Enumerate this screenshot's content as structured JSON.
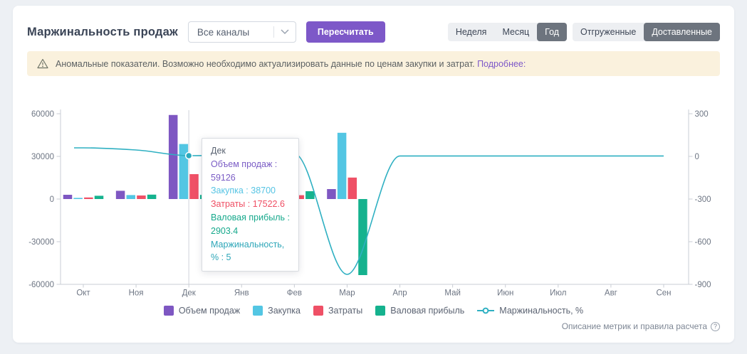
{
  "header": {
    "title": "Маржинальность продаж",
    "channel_select": {
      "value": "Все каналы"
    },
    "recalc_button": "Пересчитать",
    "period_toggle": {
      "options": [
        "Неделя",
        "Месяц",
        "Год"
      ],
      "selected": "Год"
    },
    "shipment_toggle": {
      "options": [
        "Отгруженные",
        "Доставленные"
      ],
      "selected": "Доставленные"
    }
  },
  "banner": {
    "text": "Аномальные показатели. Возможно необходимо актуализировать данные по ценам закупки и затрат.",
    "link": "Подробнее:"
  },
  "tooltip": {
    "title": "Дек",
    "rows": [
      {
        "label": "Объем продаж",
        "value": "59126",
        "color": "#7a5cc5"
      },
      {
        "label": "Закупка",
        "value": "38700",
        "color": "#56c4e4"
      },
      {
        "label": "Затраты",
        "value": "17522.6",
        "color": "#ef4f64"
      },
      {
        "label": "Валовая прибыль",
        "value": "2903.4",
        "color": "#16a98c"
      },
      {
        "label": "Маржинальность, %",
        "value": "5",
        "color": "#2da6b8"
      }
    ]
  },
  "chart_data": {
    "type": "bar",
    "categories": [
      "Окт",
      "Ноя",
      "Дек",
      "Янв",
      "Фев",
      "Мар",
      "Апр",
      "Май",
      "Июн",
      "Июл",
      "Авг",
      "Сен"
    ],
    "series": [
      {
        "name": "Объем продаж",
        "color": "#7e57c2",
        "values": [
          3000,
          5800,
          59126,
          2000,
          1500,
          7000,
          0,
          0,
          0,
          0,
          0,
          0
        ]
      },
      {
        "name": "Закупка",
        "color": "#53c6e3",
        "values": [
          800,
          2800,
          38700,
          1400,
          1200,
          46600,
          0,
          0,
          0,
          0,
          0,
          0
        ]
      },
      {
        "name": "Затраты",
        "color": "#ef5066",
        "values": [
          1100,
          2500,
          17522.6,
          1700,
          2700,
          15100,
          0,
          0,
          0,
          0,
          0,
          0
        ]
      },
      {
        "name": "Валовая прибыль",
        "color": "#15b28e",
        "values": [
          2300,
          3100,
          2903.4,
          2100,
          5500,
          -53500,
          0,
          0,
          0,
          0,
          0,
          0
        ]
      }
    ],
    "line_series": {
      "name": "Маржинальность, %",
      "color": "#2fb0c2",
      "axis": "right",
      "values": [
        60,
        45,
        5,
        10,
        20,
        -830,
        3,
        3,
        3,
        3,
        3,
        3
      ]
    },
    "left_axis": {
      "ticks": [
        60000,
        30000,
        0,
        -30000,
        -60000
      ],
      "min": -60000,
      "max": 60000
    },
    "right_axis": {
      "ticks": [
        300,
        0,
        -300,
        -600,
        -900
      ],
      "min": -900,
      "max": 300
    },
    "highlighted_category": "Дек",
    "grid": "off",
    "legend_position": "bottom"
  },
  "legend": [
    {
      "label": "Объем продаж",
      "color": "#7e57c2",
      "type": "box"
    },
    {
      "label": "Закупка",
      "color": "#53c6e3",
      "type": "box"
    },
    {
      "label": "Затраты",
      "color": "#ef5066",
      "type": "box"
    },
    {
      "label": "Валовая прибыль",
      "color": "#15b28e",
      "type": "box"
    },
    {
      "label": "Маржинальность, %",
      "color": "#2fb0c2",
      "type": "line"
    }
  ],
  "footer": {
    "note": "Описание метрик и правила расчета"
  }
}
